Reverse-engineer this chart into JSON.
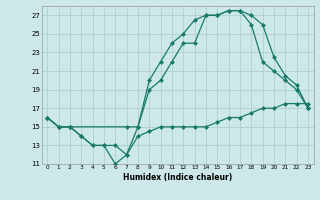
{
  "xlabel": "Humidex (Indice chaleur)",
  "bg_color": "#cce8e8",
  "grid_color": "#b0d0d0",
  "line_color": "#1a7a6a",
  "xlim": [
    -0.5,
    23.5
  ],
  "ylim": [
    11,
    28
  ],
  "xticks": [
    0,
    1,
    2,
    3,
    4,
    5,
    6,
    7,
    8,
    9,
    10,
    11,
    12,
    13,
    14,
    15,
    16,
    17,
    18,
    19,
    20,
    21,
    22,
    23
  ],
  "yticks": [
    11,
    13,
    15,
    17,
    19,
    21,
    23,
    25,
    27
  ],
  "line1_x": [
    0,
    1,
    2,
    3,
    4,
    5,
    6,
    7,
    8,
    9,
    10,
    11,
    12,
    13,
    14,
    15,
    16,
    17,
    18,
    19,
    20,
    21,
    22,
    23
  ],
  "line1_y": [
    16,
    15,
    15,
    14,
    13,
    13,
    13,
    12,
    15,
    20,
    22,
    24,
    25,
    26.5,
    27,
    27,
    27.5,
    27.5,
    26,
    22,
    21,
    20,
    19,
    17
  ],
  "line2_x": [
    0,
    1,
    2,
    3,
    4,
    5,
    6,
    7,
    8,
    9,
    10,
    11,
    12,
    13,
    14,
    15,
    16,
    17,
    18,
    19,
    20,
    21,
    22,
    23
  ],
  "line2_y": [
    16,
    15,
    15,
    14,
    13,
    13,
    11,
    12,
    14,
    14.5,
    15,
    15,
    15,
    15,
    15,
    15.5,
    16,
    16,
    16.5,
    17,
    17,
    17.5,
    17.5,
    17.5
  ],
  "line3_x": [
    0,
    1,
    2,
    7,
    8,
    9,
    10,
    11,
    12,
    13,
    14,
    15,
    16,
    17,
    18,
    19,
    20,
    21,
    22,
    23
  ],
  "line3_y": [
    16,
    15,
    15,
    15,
    15,
    19,
    20,
    22,
    24,
    24,
    27,
    27,
    27.5,
    27.5,
    27,
    26,
    22.5,
    20.5,
    19.5,
    17
  ]
}
